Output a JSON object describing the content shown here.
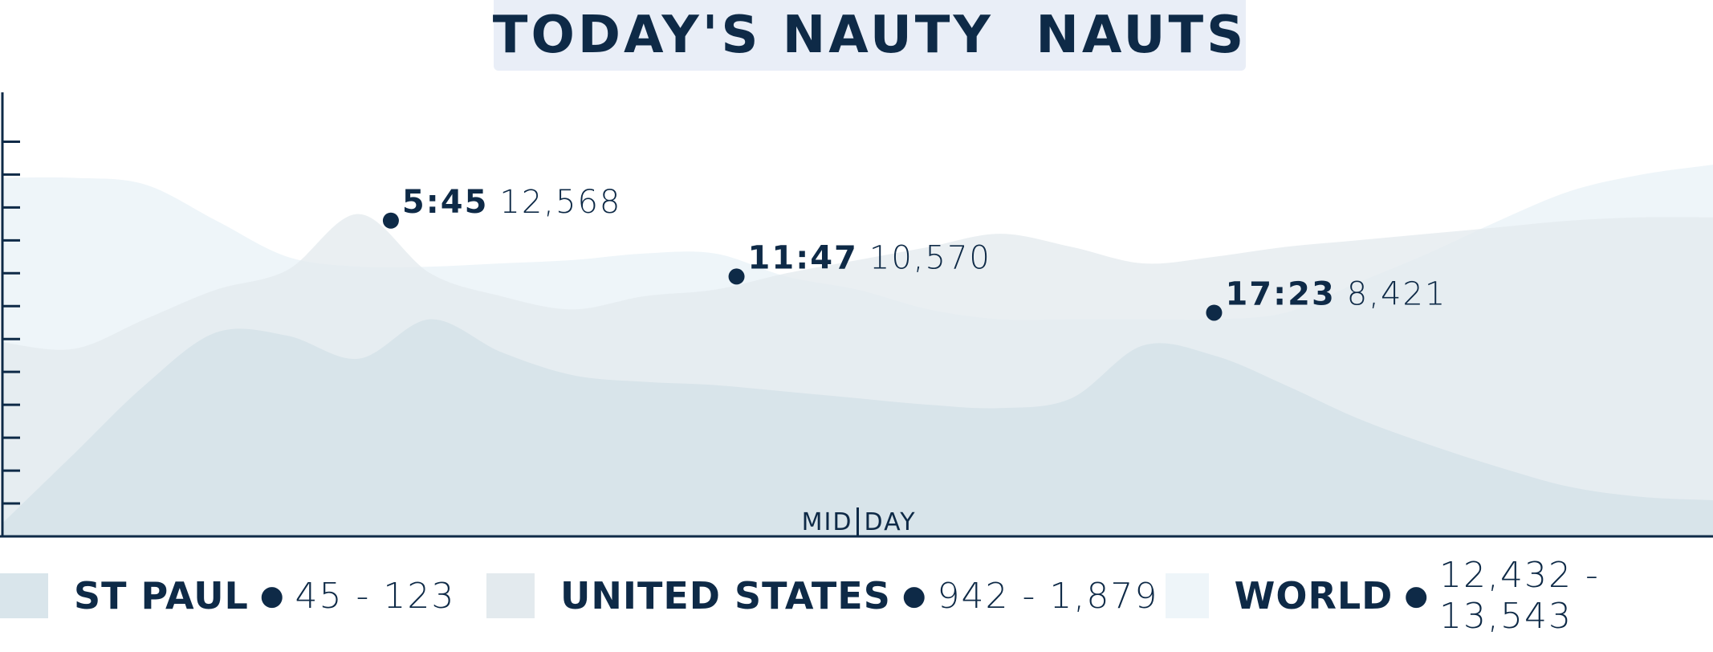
{
  "title": "TODAY'S NAUTY  NAUTS",
  "colors": {
    "axis": "#0e2a47",
    "text": "#0e2a47",
    "title_bg": "#e9eef7",
    "st_paul": "#d2e0e7",
    "united_states": "#e3eaee",
    "world": "#eef5f9"
  },
  "chart_data": {
    "type": "area",
    "xlabel": "MID|DAY",
    "x": [
      0,
      1,
      2,
      3,
      4,
      5,
      6,
      7,
      8,
      9,
      10,
      11,
      12,
      13,
      14,
      15,
      16,
      17,
      18,
      19,
      20,
      21,
      22,
      23,
      24
    ],
    "series": [
      {
        "name": "WORLD",
        "values": [
          10.9,
          10.9,
          10.7,
          9.6,
          8.5,
          8.2,
          8.2,
          8.3,
          8.4,
          8.6,
          8.6,
          7.9,
          7.5,
          6.9,
          6.6,
          6.6,
          6.6,
          6.6,
          6.8,
          7.7,
          8.6,
          9.6,
          10.5,
          11.0,
          11.3
        ]
      },
      {
        "name": "UNITED STATES",
        "values": [
          5.9,
          5.7,
          6.6,
          7.5,
          8.1,
          9.8,
          8.0,
          7.3,
          6.9,
          7.3,
          7.5,
          8.0,
          8.4,
          8.8,
          9.2,
          8.8,
          8.3,
          8.5,
          8.8,
          9.0,
          9.2,
          9.4,
          9.6,
          9.7,
          9.7
        ]
      },
      {
        "name": "ST PAUL",
        "values": [
          0.4,
          2.5,
          4.6,
          6.2,
          6.1,
          5.4,
          6.6,
          5.6,
          4.9,
          4.7,
          4.6,
          4.4,
          4.2,
          4.0,
          3.9,
          4.2,
          5.8,
          5.5,
          4.6,
          3.6,
          2.8,
          2.1,
          1.5,
          1.2,
          1.1
        ]
      }
    ],
    "ylim": [
      0,
      13.5
    ],
    "yticks": 12,
    "annotations": [
      {
        "time": "5:45",
        "value": "12,568",
        "x": 5.45,
        "y": 9.6
      },
      {
        "time": "11:47",
        "value": "10,570",
        "x": 10.3,
        "y": 7.9
      },
      {
        "time": "17:23",
        "value": "8,421",
        "x": 17.0,
        "y": 6.8
      }
    ],
    "grid": false,
    "legend_position": "bottom"
  },
  "legend": [
    {
      "name": "ST PAUL",
      "range": "45 - 123",
      "color_key": "st_paul"
    },
    {
      "name": "UNITED STATES",
      "range": "942 - 1,879",
      "color_key": "united_states"
    },
    {
      "name": "WORLD",
      "range": "12,432 - 13,543",
      "color_key": "world"
    }
  ]
}
